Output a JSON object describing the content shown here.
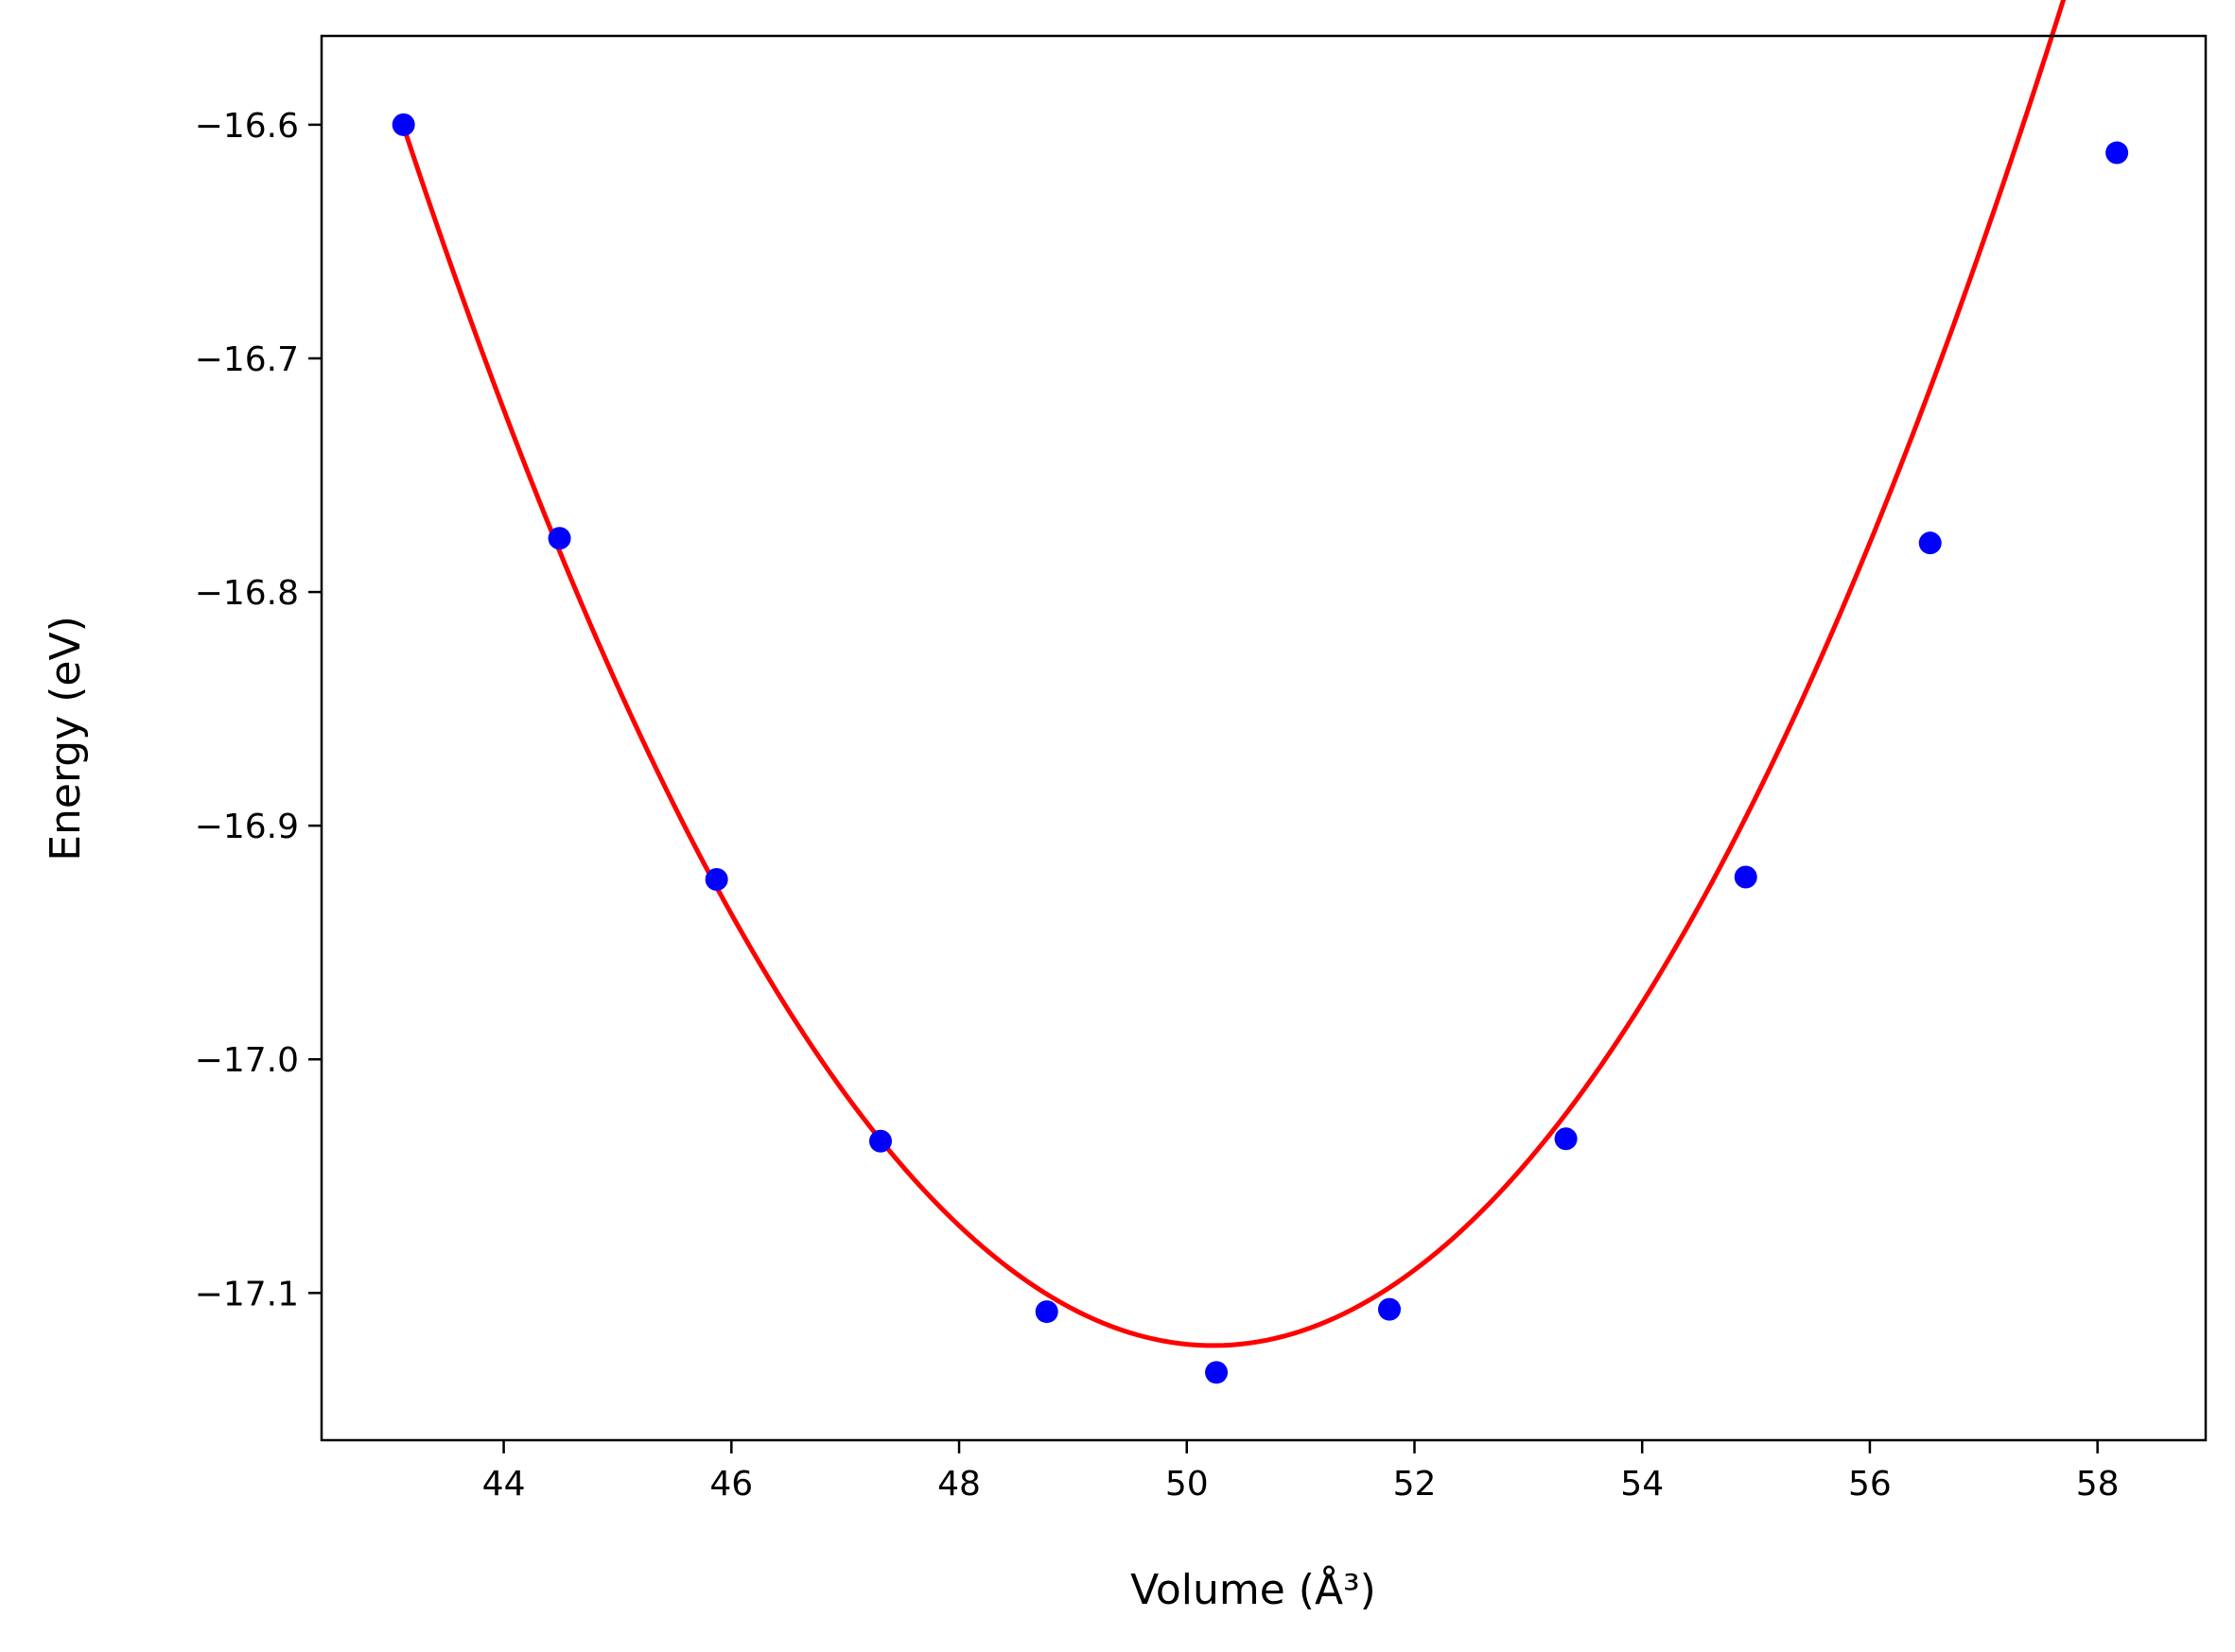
{
  "chart_data": {
    "type": "scatter",
    "title": "",
    "xlabel": "Volume (Å³)",
    "ylabel": "Energy (eV)",
    "xlim": [
      42.4,
      58.95
    ],
    "ylim": [
      -17.163,
      -16.562
    ],
    "xticks": [
      44,
      46,
      48,
      50,
      52,
      54,
      56,
      58
    ],
    "yticks": [
      -16.6,
      -16.7,
      -16.8,
      -16.9,
      -17.0,
      -17.1
    ],
    "xtick_labels": [
      "44",
      "46",
      "48",
      "50",
      "52",
      "54",
      "56",
      "58"
    ],
    "ytick_labels": [
      "−16.6",
      "−16.7",
      "−16.8",
      "−16.9",
      "−17.0",
      "−17.1"
    ],
    "grid": false,
    "series": [
      {
        "kind": "points",
        "color": "#0000ff",
        "x": [
          43.12,
          44.49,
          45.87,
          47.31,
          48.77,
          50.26,
          51.78,
          53.33,
          54.91,
          56.53,
          58.17
        ],
        "y": [
          -16.6,
          -16.777,
          -16.923,
          -17.035,
          -17.108,
          -17.134,
          -17.107,
          -17.034,
          -16.922,
          -16.779,
          -16.612
        ]
      },
      {
        "kind": "line",
        "color": "#ff0000",
        "curve": "quadratic-fit",
        "x_range": [
          43.1,
          58.15
        ],
        "vertex_x": 50.23,
        "vertex_y": -17.1225,
        "curvature": 0.01032
      }
    ]
  }
}
